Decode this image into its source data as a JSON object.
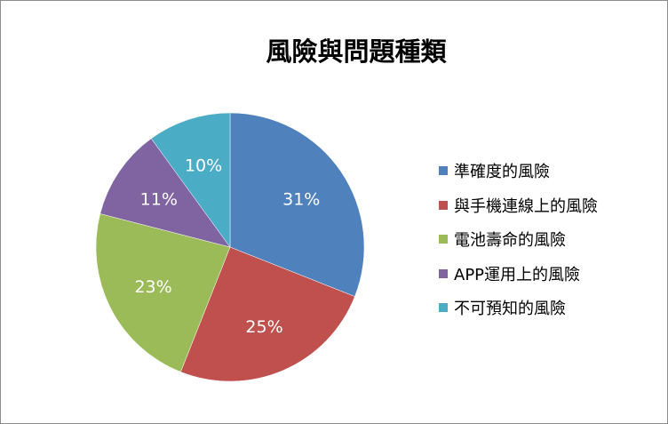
{
  "chart_data": {
    "type": "pie",
    "title": "風險與問題種類",
    "categories": [
      "準確度的風險",
      "與手機連線上的風險",
      "電池壽命的風險",
      "APP運用上的風險",
      "不可預知的風險"
    ],
    "values": [
      31,
      25,
      23,
      11,
      10
    ],
    "labels": [
      "31%",
      "25%",
      "23%",
      "11%",
      "10%"
    ],
    "colors": [
      "#4f81bd",
      "#c0504d",
      "#9bbb59",
      "#8064a2",
      "#4bacc6"
    ],
    "legend_position": "right",
    "start_angle": "12 o'clock, clockwise"
  }
}
